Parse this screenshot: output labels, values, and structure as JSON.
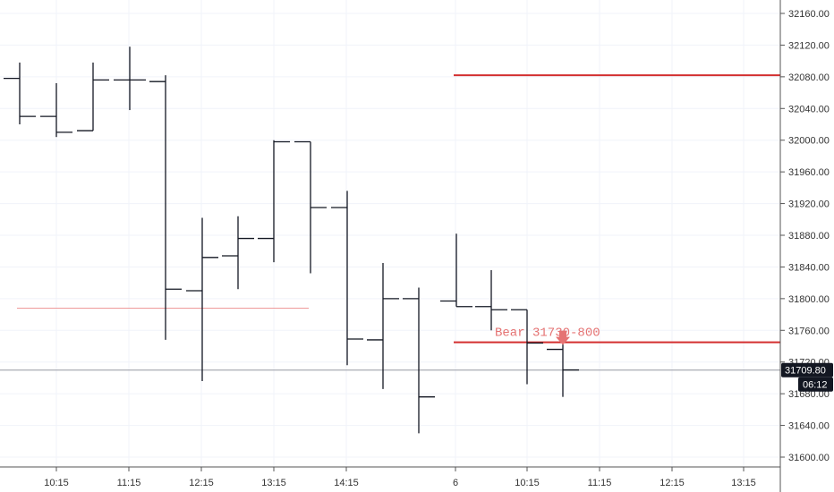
{
  "chart_data": {
    "type": "ohlc",
    "title": "",
    "xlabel": "",
    "ylabel": "",
    "ylim": [
      31580,
      32180
    ],
    "y_ticks": [
      31600,
      31640,
      31680,
      31720,
      31760,
      31800,
      31840,
      31880,
      31920,
      31960,
      32000,
      32040,
      32080,
      32120,
      32160
    ],
    "y_tick_labels": [
      "31600.00",
      "31640.00",
      "31680.00",
      "31720.00",
      "31760.00",
      "31800.00",
      "31840.00",
      "31880.00",
      "31920.00",
      "31960.00",
      "32000.00",
      "32040.00",
      "32080.00",
      "32120.00",
      "32160.00"
    ],
    "x_tick_labels": [
      "10:15",
      "11:15",
      "12:15",
      "13:15",
      "14:15",
      "6",
      "10:15",
      "11:15",
      "12:15",
      "13:15"
    ],
    "grid": true,
    "bars": [
      {
        "open": 32078,
        "high": 32098,
        "low": 32020,
        "close": 32030
      },
      {
        "open": 32030,
        "high": 32072,
        "low": 32004,
        "close": 32010
      },
      {
        "open": 32012,
        "high": 32098,
        "low": 32012,
        "close": 32076
      },
      {
        "open": 32076,
        "high": 32118,
        "low": 32038,
        "close": 32076
      },
      {
        "open": 32074,
        "high": 32082,
        "low": 31748,
        "close": 31812
      },
      {
        "open": 31810,
        "high": 31902,
        "low": 31696,
        "close": 31852
      },
      {
        "open": 31854,
        "high": 31904,
        "low": 31812,
        "close": 31876
      },
      {
        "open": 31876,
        "high": 32000,
        "low": 31846,
        "close": 31998
      },
      {
        "open": 31998,
        "high": 31998,
        "low": 31832,
        "close": 31915
      },
      {
        "open": 31915,
        "high": 31936,
        "low": 31716,
        "close": 31749
      },
      {
        "open": 31748,
        "high": 31845,
        "low": 31686,
        "close": 31800
      },
      {
        "open": 31800,
        "high": 31814,
        "low": 31630,
        "close": 31676
      },
      {
        "open": 31797,
        "high": 31882,
        "low": 31790,
        "close": 31790
      },
      {
        "open": 31790,
        "high": 31836,
        "low": 31760,
        "close": 31786
      },
      {
        "open": 31786,
        "high": 31786,
        "low": 31692,
        "close": 31744
      },
      {
        "open": 31736,
        "high": 31752,
        "low": 31676,
        "close": 31710
      }
    ],
    "levels": [
      {
        "value": 32082,
        "color": "#d32f2f",
        "from_bar": 12,
        "width": 2
      },
      {
        "value": 31745,
        "color": "#d32f2f",
        "from_bar": 12,
        "width": 2
      },
      {
        "value": 31788,
        "color": "#ef9a9a",
        "from_bar": 0,
        "to_bar": 8,
        "width": 1
      }
    ],
    "annotation": {
      "text": "Bear 31730-800",
      "color": "#e57373"
    },
    "last_price": {
      "value": 31709.8,
      "label": "31709.80",
      "countdown": "06:12"
    }
  },
  "colors": {
    "bar": "#131722",
    "grid": "#f0f3fa",
    "axis": "#555555",
    "last_price_line": "#9598a1",
    "badge_bg": "#131722"
  }
}
